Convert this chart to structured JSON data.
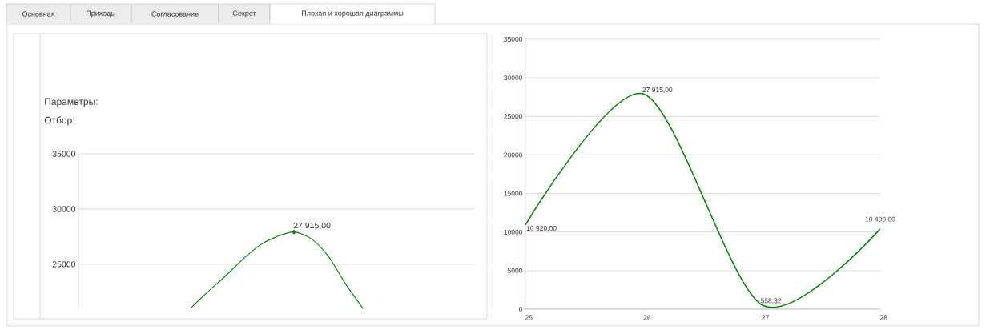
{
  "chart_data": [
    {
      "type": "other",
      "annotations": [
        "Основная",
        "Приходы",
        "Согласование",
        "Секрет",
        "Плохая и хорошая диаграммы"
      ]
    },
    {
      "type": "line",
      "annotations": [
        "Параметры:",
        "Отбор:"
      ],
      "categories": [
        null,
        null,
        null,
        null,
        null,
        null,
        null,
        null,
        null,
        null,
        null,
        null,
        null,
        null,
        null,
        null,
        null,
        null,
        null,
        null,
        null,
        null,
        null
      ],
      "ylim": [
        21000,
        35000
      ],
      "yticks": [
        25000,
        30000,
        35000
      ],
      "grid": "y",
      "tick_labels": "y",
      "series": [
        {
          "type": "line",
          "color": "#008000",
          "values": [
            null,
            null,
            null,
            null,
            null,
            null,
            21000,
            22500,
            23900,
            25400,
            26700,
            27500,
            27915,
            27300,
            25700,
            23200,
            21000,
            null,
            null,
            null,
            null,
            null,
            null
          ]
        },
        {
          "type": "scatter",
          "color": "#008000",
          "marker": "diamond",
          "values": [
            null,
            null,
            null,
            null,
            null,
            null,
            null,
            null,
            null,
            null,
            null,
            null,
            27915,
            null,
            null,
            null,
            null,
            null,
            null,
            null,
            null,
            null,
            null
          ],
          "value_labels": [
            null,
            null,
            null,
            null,
            null,
            null,
            null,
            null,
            null,
            null,
            null,
            null,
            "27 915,00",
            null,
            null,
            null,
            null,
            null,
            null,
            null,
            null,
            null,
            null
          ]
        }
      ]
    },
    {
      "type": "line",
      "categories": [
        "25",
        "26",
        "27",
        "28"
      ],
      "values": [
        10920,
        27915,
        558.32,
        10400
      ],
      "value_labels": [
        "10 920,00",
        "27 915,00",
        "558,32",
        "10 400,00"
      ],
      "color": "#008000",
      "ylim": [
        0,
        35000
      ],
      "yticks": [
        0,
        5000,
        10000,
        15000,
        20000,
        25000,
        30000,
        35000
      ],
      "grid": "y"
    }
  ]
}
